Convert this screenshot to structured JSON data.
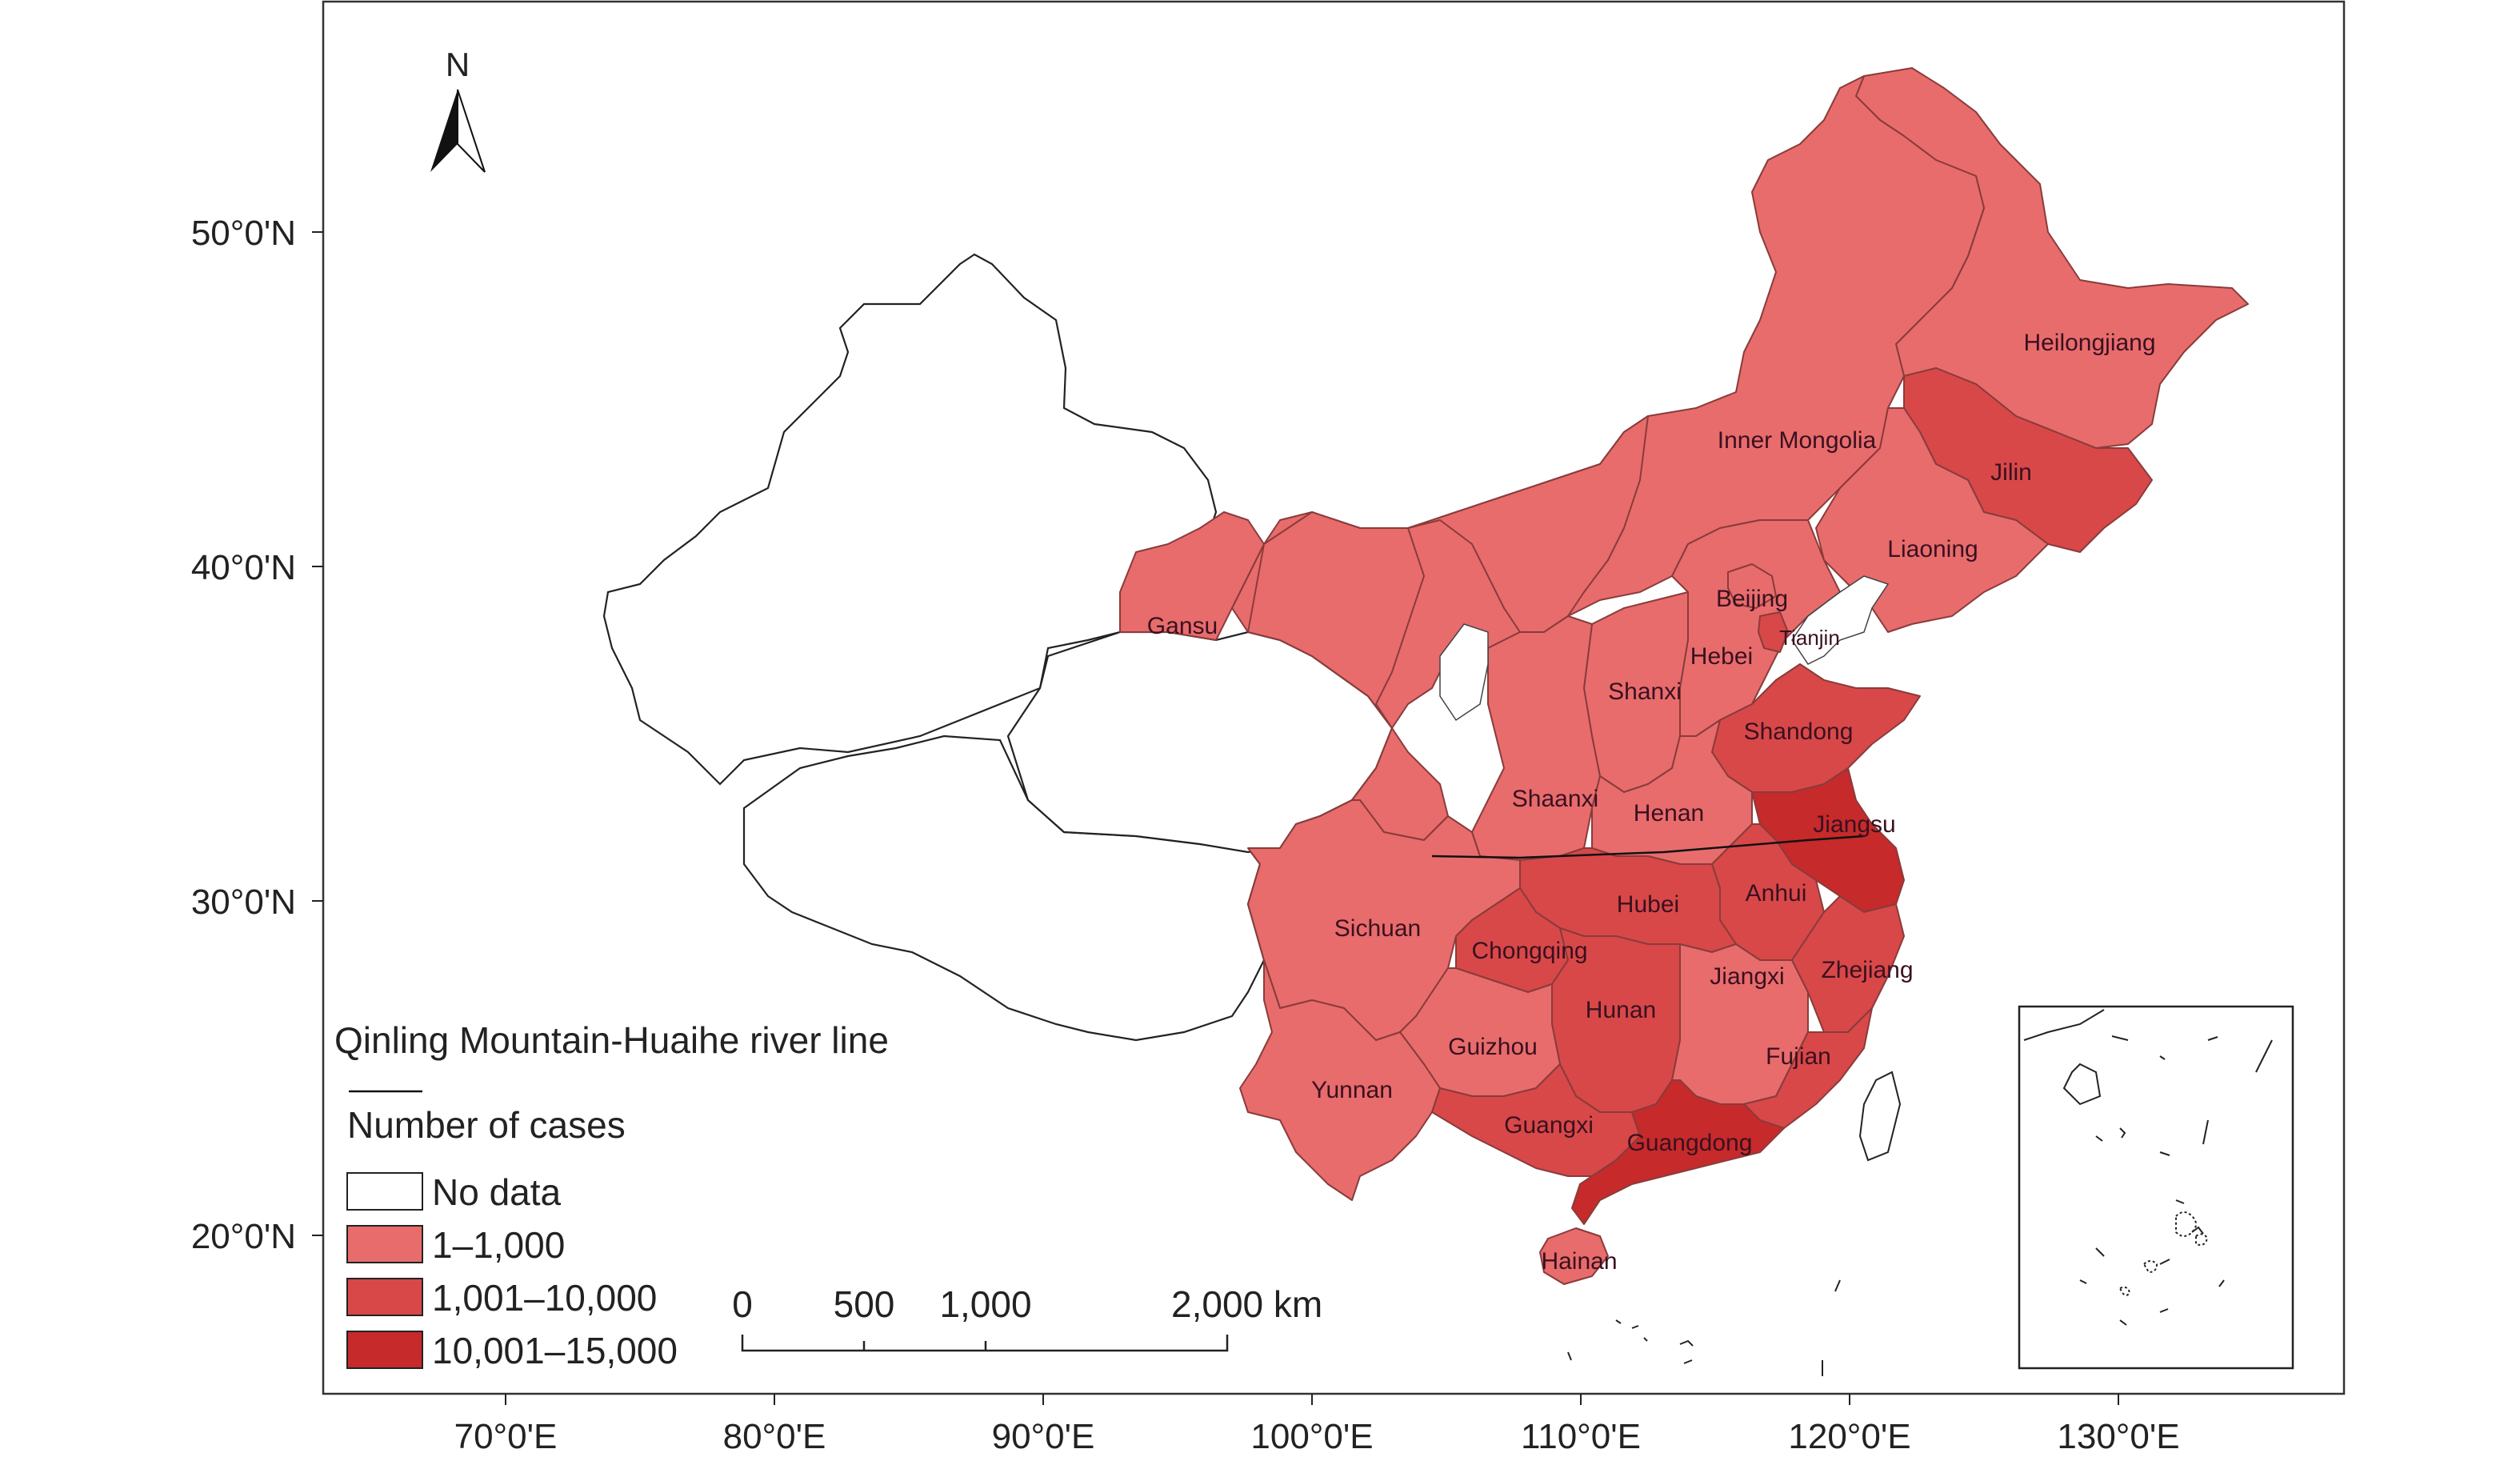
{
  "north_arrow": {
    "label": "N"
  },
  "axes": {
    "lat_ticks": [
      "50°0'N",
      "40°0'N",
      "30°0'N",
      "20°0'N"
    ],
    "lon_ticks": [
      "70°0'E",
      "80°0'E",
      "90°0'E",
      "100°0'E",
      "110°0'E",
      "120°0'E",
      "130°0'E"
    ]
  },
  "legend": {
    "line_label": "Qinling Mountain-Huaihe river line",
    "title": "Number of cases",
    "classes": [
      {
        "label": "No data",
        "color": "#ffffff"
      },
      {
        "label": "1–1,000",
        "color": "#e86c6c"
      },
      {
        "label": "1,001–10,000",
        "color": "#d84848"
      },
      {
        "label": "10,001–15,000",
        "color": "#c62a2a"
      }
    ]
  },
  "scale_bar": {
    "labels": [
      "0",
      "500",
      "1,000",
      "2,000 km"
    ]
  },
  "provinces": [
    {
      "name": "Heilongjiang",
      "class": "1–1,000"
    },
    {
      "name": "Inner Mongolia",
      "class": "1–1,000"
    },
    {
      "name": "Jilin",
      "class": "1,001–10,000"
    },
    {
      "name": "Liaoning",
      "class": "1–1,000"
    },
    {
      "name": "Beijing",
      "class": "1–1,000"
    },
    {
      "name": "Tianjin",
      "class": "1,001–10,000"
    },
    {
      "name": "Hebei",
      "class": "1–1,000"
    },
    {
      "name": "Gansu",
      "class": "1–1,000"
    },
    {
      "name": "Shanxi",
      "class": "1–1,000"
    },
    {
      "name": "Shandong",
      "class": "1,001–10,000"
    },
    {
      "name": "Shaanxi",
      "class": "1–1,000"
    },
    {
      "name": "Henan",
      "class": "1–1,000"
    },
    {
      "name": "Jiangsu",
      "class": "10,001–15,000"
    },
    {
      "name": "Anhui",
      "class": "1,001–10,000"
    },
    {
      "name": "Hubei",
      "class": "1,001–10,000"
    },
    {
      "name": "Sichuan",
      "class": "1–1,000"
    },
    {
      "name": "Chongqing",
      "class": "1,001–10,000"
    },
    {
      "name": "Jiangxi",
      "class": "1–1,000"
    },
    {
      "name": "Zhejiang",
      "class": "1,001–10,000"
    },
    {
      "name": "Hunan",
      "class": "1,001–10,000"
    },
    {
      "name": "Guizhou",
      "class": "1–1,000"
    },
    {
      "name": "Fujian",
      "class": "1,001–10,000"
    },
    {
      "name": "Yunnan",
      "class": "1–1,000"
    },
    {
      "name": "Guangxi",
      "class": "1,001–10,000"
    },
    {
      "name": "Guangdong",
      "class": "10,001–15,000"
    },
    {
      "name": "Hainan",
      "class": "1–1,000"
    }
  ]
}
